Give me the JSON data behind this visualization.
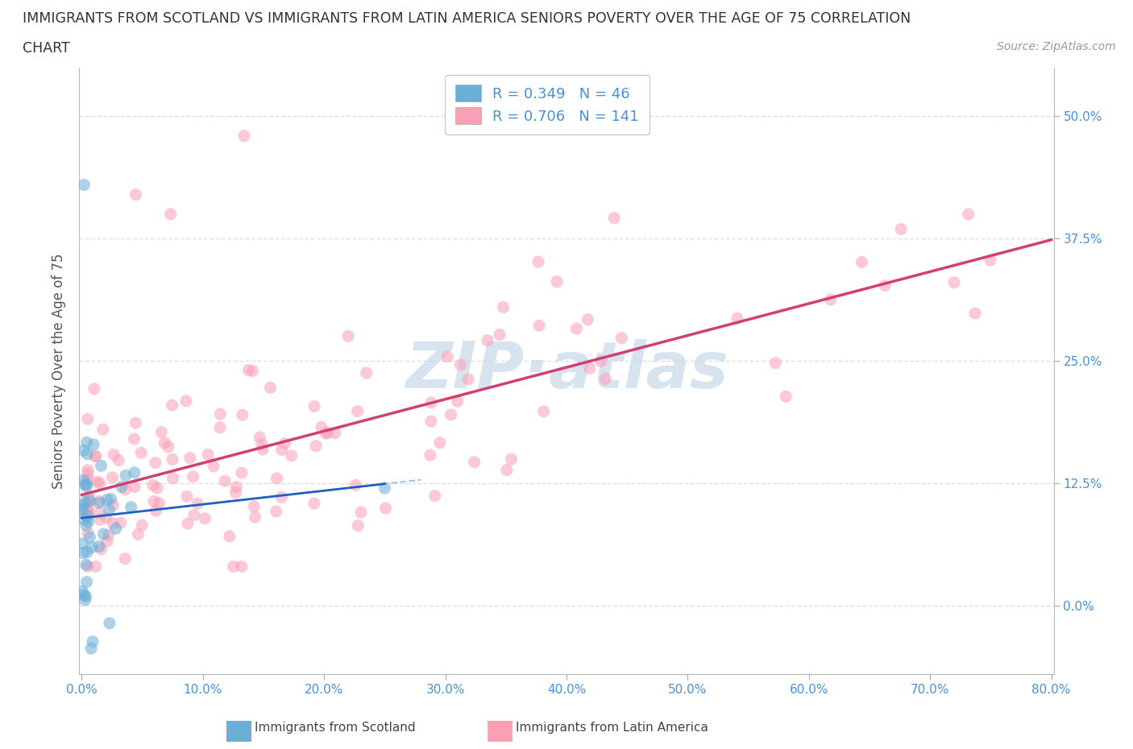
{
  "title_line1": "IMMIGRANTS FROM SCOTLAND VS IMMIGRANTS FROM LATIN AMERICA SENIORS POVERTY OVER THE AGE OF 75 CORRELATION",
  "title_line2": "CHART",
  "source": "Source: ZipAtlas.com",
  "ylabel": "Seniors Poverty Over the Age of 75",
  "xlim": [
    -0.002,
    0.802
  ],
  "ylim": [
    -0.07,
    0.55
  ],
  "xticks": [
    0.0,
    0.1,
    0.2,
    0.3,
    0.4,
    0.5,
    0.6,
    0.7,
    0.8
  ],
  "xticklabels": [
    "0.0%",
    "10.0%",
    "20.0%",
    "30.0%",
    "40.0%",
    "50.0%",
    "60.0%",
    "70.0%",
    "80.0%"
  ],
  "yticks": [
    0.0,
    0.125,
    0.25,
    0.375,
    0.5
  ],
  "yticklabels": [
    "0.0%",
    "12.5%",
    "25.0%",
    "37.5%",
    "50.0%"
  ],
  "scotland_color": "#6baed6",
  "latin_color": "#fa9fb5",
  "scotland_R": 0.349,
  "scotland_N": 46,
  "latin_R": 0.706,
  "latin_N": 141,
  "legend_label_scotland": "Immigrants from Scotland",
  "legend_label_latin": "Immigrants from Latin America",
  "background_color": "#ffffff",
  "grid_color": "#e0e0e0",
  "watermark_text": "ZIP·atlas",
  "watermark_color": "#c8d8ea",
  "tick_color": "#4a90d9",
  "xlabel_color": "#4a90d9",
  "trend_scot_color": "#2060c0",
  "trend_latin_color": "#d04070",
  "scatter_size": 120,
  "scatter_alpha": 0.55
}
